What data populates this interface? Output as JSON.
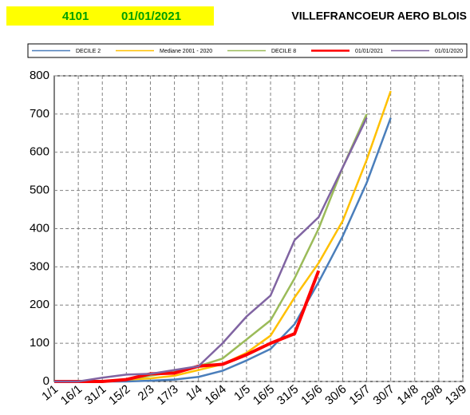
{
  "chart_data": {
    "type": "line",
    "station": "4101",
    "date": "01/01/2021",
    "title": "VILLEFRANCOEUR AERO BLOIS",
    "categories": [
      "1/1",
      "16/1",
      "31/1",
      "15/2",
      "2/3",
      "17/3",
      "1/4",
      "16/4",
      "1/5",
      "16/5",
      "31/5",
      "15/6",
      "30/6",
      "15/7",
      "30/7",
      "14/8",
      "29/8",
      "13/9"
    ],
    "series": [
      {
        "name": "DECILE 2",
        "color": "#4a7ebb",
        "width": 2.5,
        "values": [
          0,
          0,
          0,
          0,
          2,
          5,
          12,
          28,
          55,
          85,
          150,
          260,
          380,
          520,
          690,
          null,
          null,
          null
        ]
      },
      {
        "name": "Mediane 2001 - 2020",
        "color": "#ffc000",
        "width": 2.5,
        "values": [
          0,
          0,
          0,
          5,
          8,
          15,
          30,
          45,
          75,
          120,
          220,
          310,
          420,
          580,
          760,
          null,
          null,
          null
        ]
      },
      {
        "name": "DECILE 8",
        "color": "#9bbb59",
        "width": 2.5,
        "values": [
          0,
          0,
          0,
          5,
          15,
          25,
          40,
          60,
          110,
          160,
          270,
          400,
          560,
          700,
          null,
          null,
          null,
          null
        ]
      },
      {
        "name": "01/01/2021",
        "color": "#ff0000",
        "width": 4,
        "values": [
          0,
          0,
          0,
          5,
          20,
          22,
          40,
          45,
          70,
          100,
          125,
          290,
          null,
          null,
          null,
          null,
          null,
          null
        ]
      },
      {
        "name": "01/01/2020",
        "color": "#8064a2",
        "width": 2.5,
        "values": [
          0,
          0,
          10,
          18,
          20,
          30,
          40,
          100,
          170,
          225,
          370,
          430,
          560,
          690,
          null,
          null,
          null,
          null
        ]
      }
    ],
    "ylim": [
      0,
      800
    ],
    "yticks": [
      0,
      100,
      200,
      300,
      400,
      500,
      600,
      700,
      800
    ],
    "grid": true
  }
}
